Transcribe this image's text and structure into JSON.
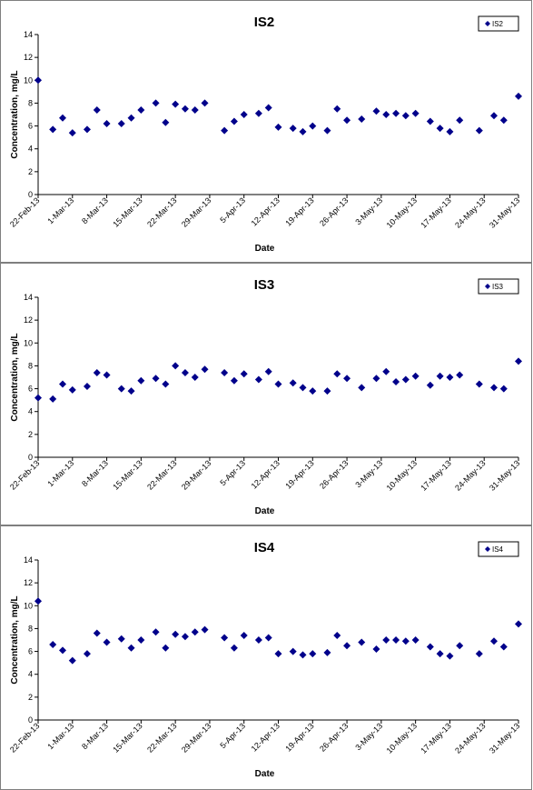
{
  "chart_data": [
    {
      "type": "scatter",
      "title": "IS2",
      "xlabel": "Date",
      "ylabel": "Concentration, mg/L",
      "legend": "top-right",
      "grid": false,
      "ylim": [
        0,
        14
      ],
      "yticks": [
        0,
        2,
        4,
        6,
        8,
        10,
        12,
        14
      ],
      "xlim": [
        "2013-02-22",
        "2013-05-31"
      ],
      "xticks": [
        "22-Feb-13",
        "1-Mar-13",
        "8-Mar-13",
        "15-Mar-13",
        "22-Mar-13",
        "29-Mar-13",
        "5-Apr-13",
        "12-Apr-13",
        "19-Apr-13",
        "26-Apr-13",
        "3-May-13",
        "10-May-13",
        "17-May-13",
        "24-May-13",
        "31-May-13"
      ],
      "marker_color": "#00008b",
      "series": [
        {
          "name": "IS2",
          "x": [
            "2013-02-22",
            "2013-02-25",
            "2013-02-27",
            "2013-03-01",
            "2013-03-04",
            "2013-03-06",
            "2013-03-08",
            "2013-03-11",
            "2013-03-13",
            "2013-03-15",
            "2013-03-18",
            "2013-03-20",
            "2013-03-22",
            "2013-03-24",
            "2013-03-26",
            "2013-03-28",
            "2013-04-01",
            "2013-04-03",
            "2013-04-05",
            "2013-04-08",
            "2013-04-10",
            "2013-04-12",
            "2013-04-15",
            "2013-04-17",
            "2013-04-19",
            "2013-04-22",
            "2013-04-24",
            "2013-04-26",
            "2013-04-29",
            "2013-05-02",
            "2013-05-04",
            "2013-05-06",
            "2013-05-08",
            "2013-05-10",
            "2013-05-13",
            "2013-05-15",
            "2013-05-17",
            "2013-05-19",
            "2013-05-23",
            "2013-05-26",
            "2013-05-28",
            "2013-05-31"
          ],
          "y": [
            10.0,
            5.7,
            6.7,
            5.4,
            5.7,
            7.4,
            6.2,
            6.2,
            6.7,
            7.4,
            8.0,
            6.3,
            7.9,
            7.5,
            7.4,
            8.0,
            5.6,
            6.4,
            7.0,
            7.1,
            7.6,
            5.9,
            5.8,
            5.5,
            6.0,
            5.6,
            7.5,
            6.5,
            6.6,
            7.3,
            7.0,
            7.1,
            6.9,
            7.1,
            6.4,
            5.8,
            5.5,
            6.5,
            5.6,
            6.9,
            6.5,
            8.6
          ]
        }
      ]
    },
    {
      "type": "scatter",
      "title": "IS3",
      "xlabel": "Date",
      "ylabel": "Concentration, mg/L",
      "legend": "top-right",
      "grid": false,
      "ylim": [
        0,
        14
      ],
      "yticks": [
        0,
        2,
        4,
        6,
        8,
        10,
        12,
        14
      ],
      "xlim": [
        "2013-02-22",
        "2013-05-31"
      ],
      "xticks": [
        "22-Feb-13",
        "1-Mar-13",
        "8-Mar-13",
        "15-Mar-13",
        "22-Mar-13",
        "29-Mar-13",
        "5-Apr-13",
        "12-Apr-13",
        "19-Apr-13",
        "26-Apr-13",
        "3-May-13",
        "10-May-13",
        "17-May-13",
        "24-May-13",
        "31-May-13"
      ],
      "marker_color": "#00008b",
      "series": [
        {
          "name": "IS3",
          "x": [
            "2013-02-22",
            "2013-02-25",
            "2013-02-27",
            "2013-03-01",
            "2013-03-04",
            "2013-03-06",
            "2013-03-08",
            "2013-03-11",
            "2013-03-13",
            "2013-03-15",
            "2013-03-18",
            "2013-03-20",
            "2013-03-22",
            "2013-03-24",
            "2013-03-26",
            "2013-03-28",
            "2013-04-01",
            "2013-04-03",
            "2013-04-05",
            "2013-04-08",
            "2013-04-10",
            "2013-04-12",
            "2013-04-15",
            "2013-04-17",
            "2013-04-19",
            "2013-04-22",
            "2013-04-24",
            "2013-04-26",
            "2013-04-29",
            "2013-05-02",
            "2013-05-04",
            "2013-05-06",
            "2013-05-08",
            "2013-05-10",
            "2013-05-13",
            "2013-05-15",
            "2013-05-17",
            "2013-05-19",
            "2013-05-23",
            "2013-05-26",
            "2013-05-28",
            "2013-05-31"
          ],
          "y": [
            5.2,
            5.1,
            6.4,
            5.9,
            6.2,
            7.4,
            7.2,
            6.0,
            5.8,
            6.7,
            6.9,
            6.4,
            8.0,
            7.4,
            7.0,
            7.7,
            7.4,
            6.7,
            7.3,
            6.8,
            7.5,
            6.4,
            6.5,
            6.1,
            5.8,
            5.8,
            7.3,
            6.9,
            6.1,
            6.9,
            7.5,
            6.6,
            6.8,
            7.1,
            6.3,
            7.1,
            7.0,
            7.2,
            6.4,
            6.1,
            6.0,
            8.4
          ]
        }
      ]
    },
    {
      "type": "scatter",
      "title": "IS4",
      "xlabel": "Date",
      "ylabel": "Concentration, mg/L",
      "legend": "top-right",
      "grid": false,
      "ylim": [
        0,
        14
      ],
      "yticks": [
        0,
        2,
        4,
        6,
        8,
        10,
        12,
        14
      ],
      "xlim": [
        "2013-02-22",
        "2013-05-31"
      ],
      "xticks": [
        "22-Feb-13",
        "1-Mar-13",
        "8-Mar-13",
        "15-Mar-13",
        "22-Mar-13",
        "29-Mar-13",
        "5-Apr-13",
        "12-Apr-13",
        "19-Apr-13",
        "26-Apr-13",
        "3-May-13",
        "10-May-13",
        "17-May-13",
        "24-May-13",
        "31-May-13"
      ],
      "marker_color": "#00008b",
      "series": [
        {
          "name": "IS4",
          "x": [
            "2013-02-22",
            "2013-02-25",
            "2013-02-27",
            "2013-03-01",
            "2013-03-04",
            "2013-03-06",
            "2013-03-08",
            "2013-03-11",
            "2013-03-13",
            "2013-03-15",
            "2013-03-18",
            "2013-03-20",
            "2013-03-22",
            "2013-03-24",
            "2013-03-26",
            "2013-03-28",
            "2013-04-01",
            "2013-04-03",
            "2013-04-05",
            "2013-04-08",
            "2013-04-10",
            "2013-04-12",
            "2013-04-15",
            "2013-04-17",
            "2013-04-19",
            "2013-04-22",
            "2013-04-24",
            "2013-04-26",
            "2013-04-29",
            "2013-05-02",
            "2013-05-04",
            "2013-05-06",
            "2013-05-08",
            "2013-05-10",
            "2013-05-13",
            "2013-05-15",
            "2013-05-17",
            "2013-05-19",
            "2013-05-23",
            "2013-05-26",
            "2013-05-28",
            "2013-05-31"
          ],
          "y": [
            10.4,
            6.6,
            6.1,
            5.2,
            5.8,
            7.6,
            6.8,
            7.1,
            6.3,
            7.0,
            7.7,
            6.3,
            7.5,
            7.3,
            7.7,
            7.9,
            7.2,
            6.3,
            7.4,
            7.0,
            7.2,
            5.8,
            6.0,
            5.7,
            5.8,
            5.9,
            7.4,
            6.5,
            6.8,
            6.2,
            7.0,
            7.0,
            6.9,
            7.0,
            6.4,
            5.8,
            5.6,
            6.5,
            5.8,
            6.9,
            6.4,
            8.4
          ]
        }
      ]
    }
  ]
}
